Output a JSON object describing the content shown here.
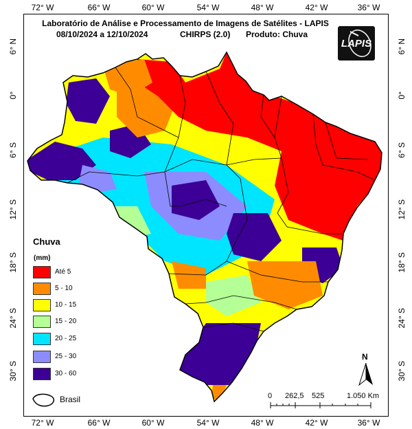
{
  "title": {
    "line1": "Laboratório de Análise e Processamento de Imagens de Satélites - LAPIS",
    "line2_dates": "08/10/2024  a 12/10/2024",
    "line2_product_source": "CHIRPS (2.0)",
    "line2_product": "Produto: Chuva"
  },
  "logo": {
    "text": "LAPIS"
  },
  "longitude_ticks": [
    "72° W",
    "66° W",
    "60° W",
    "54° W",
    "48° W",
    "42° W",
    "36° W"
  ],
  "latitude_ticks": [
    "6° N",
    "0°",
    "6° S",
    "12° S",
    "18° S",
    "24° S",
    "30° S"
  ],
  "legend": {
    "title": "Chuva",
    "unit": "(mm)",
    "classes": [
      {
        "label": "Até 5",
        "color": "#ff0000"
      },
      {
        "label": "5 - 10",
        "color": "#ff8c00"
      },
      {
        "label": "10 - 15",
        "color": "#ffff00"
      },
      {
        "label": "15 - 20",
        "color": "#b4ff96"
      },
      {
        "label": "20 - 25",
        "color": "#00e5ff"
      },
      {
        "label": "25 - 30",
        "color": "#8c8cff"
      },
      {
        "label": "30 - 60",
        "color": "#3c0096"
      }
    ]
  },
  "boundary_legend": {
    "label": "Brasil"
  },
  "scale_bar": {
    "labels": [
      "0",
      "262,5",
      "525",
      "1.050 Km"
    ]
  },
  "north_arrow": {
    "label": "N"
  }
}
